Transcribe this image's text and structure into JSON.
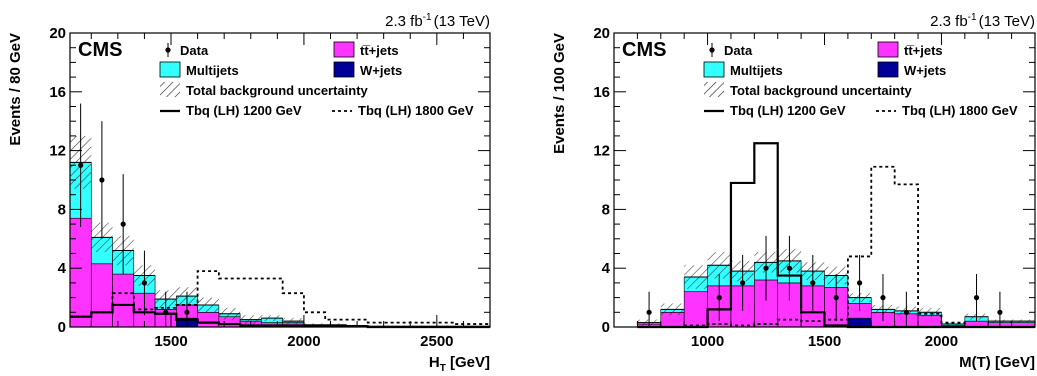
{
  "chart_data": [
    {
      "type": "bar",
      "lumi": "2.3 fb",
      "lumi_exp": "-1",
      "energy": "(13 TeV)",
      "experiment": "CMS",
      "ylabel": "Events / 80 GeV",
      "xlabel": "H",
      "xlabel_sub": "T",
      "xlabel_unit": " [GeV]",
      "xlim": [
        1120,
        2700
      ],
      "ylim": [
        0,
        20
      ],
      "x_ticks": [
        "1500",
        "2000",
        "2500"
      ],
      "y_ticks": [
        "0",
        "4",
        "8",
        "12",
        "16",
        "20"
      ],
      "legend": {
        "data": "Data",
        "ttbar": "tt̅+jets",
        "multijets": "Multijets",
        "wjets": "W+jets",
        "uncertainty": "Total background uncertainty",
        "signal1": "Tbq (LH) 1200 GeV",
        "signal2": "Tbq (LH) 1800 GeV"
      },
      "colors": {
        "ttbar": "#ff33ff",
        "multijets": "#33ffff",
        "wjets": "#000099",
        "data": "#000000"
      },
      "bin_edges": [
        1120,
        1200,
        1280,
        1360,
        1440,
        1520,
        1600,
        1680,
        1760,
        1840,
        1920,
        2000,
        2080,
        2160,
        2240,
        2320,
        2400,
        2480,
        2560,
        2640,
        2700
      ],
      "series": [
        {
          "name": "W+jets",
          "values": [
            0,
            0,
            0,
            0,
            0,
            0.6,
            0,
            0,
            0,
            0,
            0,
            0,
            0,
            0,
            0,
            0,
            0,
            0,
            0,
            0
          ]
        },
        {
          "name": "tt̅+jets",
          "values": [
            7.4,
            4.3,
            3.6,
            2.3,
            1.2,
            0.9,
            1.0,
            0.7,
            0.4,
            0.3,
            0.3,
            0.1,
            0.1,
            0.1,
            0.05,
            0.05,
            0.05,
            0.05,
            0.05,
            0.05
          ]
        },
        {
          "name": "Multijets",
          "values": [
            3.8,
            1.8,
            1.6,
            1.2,
            0.7,
            0.6,
            0.5,
            0.2,
            0.1,
            0.3,
            0.1,
            0.05,
            0.05,
            0,
            0,
            0,
            0,
            0,
            0,
            0
          ]
        }
      ],
      "uncertainty": [
        1.8,
        1.0,
        1.0,
        0.7,
        0.6,
        0.6,
        0.5,
        0.4,
        0.3,
        0.2,
        0.2,
        0.1,
        0.1,
        0.05,
        0.05,
        0.05,
        0.05,
        0.05,
        0.05,
        0.05
      ],
      "signal1": [
        0.7,
        1.0,
        1.5,
        1.0,
        0.9,
        0.5,
        0.3,
        0.2,
        0.1,
        0.1,
        0.1,
        0.05,
        0.05,
        0.05,
        0,
        0,
        0,
        0,
        0,
        0
      ],
      "signal2": [
        0.7,
        1.0,
        2.3,
        1.2,
        1.3,
        1.5,
        3.8,
        3.3,
        3.3,
        3.3,
        2.3,
        1.0,
        0.5,
        0.5,
        0.3,
        0.3,
        0.3,
        0.3,
        0.2,
        0.2
      ],
      "data_points": [
        {
          "x": 1160,
          "y": 11,
          "err": 4.2
        },
        {
          "x": 1240,
          "y": 10,
          "err": 4.0
        },
        {
          "x": 1320,
          "y": 7,
          "err": 3.4
        },
        {
          "x": 1400,
          "y": 3,
          "err": 2.2
        },
        {
          "x": 1480,
          "y": 1,
          "err": 1.4
        },
        {
          "x": 1560,
          "y": 1,
          "err": 1.4
        }
      ]
    },
    {
      "type": "bar",
      "lumi": "2.3 fb",
      "lumi_exp": "-1",
      "energy": "(13 TeV)",
      "experiment": "CMS",
      "ylabel": "Events / 100 GeV",
      "xlabel": "M(T)",
      "xlabel_sub": "",
      "xlabel_unit": " [GeV]",
      "xlim": [
        600,
        2400
      ],
      "ylim": [
        0,
        20
      ],
      "x_ticks": [
        "1000",
        "1500",
        "2000"
      ],
      "y_ticks": [
        "0",
        "4",
        "8",
        "12",
        "16",
        "20"
      ],
      "legend": {
        "data": "Data",
        "ttbar": "tt̅+jets",
        "multijets": "Multijets",
        "wjets": "W+jets",
        "uncertainty": "Total background uncertainty",
        "signal1": "Tbq (LH) 1200 GeV",
        "signal2": "Tbq (LH) 1800 GeV"
      },
      "colors": {
        "ttbar": "#ff33ff",
        "multijets": "#33ffff",
        "wjets": "#000099",
        "data": "#000000"
      },
      "bin_edges": [
        700,
        800,
        900,
        1000,
        1100,
        1200,
        1300,
        1400,
        1500,
        1600,
        1700,
        1800,
        1900,
        2000,
        2100,
        2200,
        2300,
        2400
      ],
      "series": [
        {
          "name": "W+jets",
          "values": [
            0,
            0,
            0,
            0,
            0,
            0,
            0,
            0,
            0,
            0.6,
            0,
            0,
            0,
            0,
            0,
            0,
            0
          ]
        },
        {
          "name": "tt̅+jets",
          "values": [
            0.2,
            1.0,
            2.4,
            2.8,
            2.8,
            3.2,
            3.0,
            2.8,
            2.7,
            1.0,
            1.0,
            0.9,
            0.8,
            0.1,
            0.4,
            0.3,
            0.3
          ]
        },
        {
          "name": "Multijets",
          "values": [
            0.1,
            0.2,
            1.0,
            1.4,
            1.0,
            1.2,
            1.5,
            1.0,
            0.8,
            0.4,
            0.2,
            0.2,
            0.2,
            0.1,
            0.3,
            0.1,
            0.1
          ]
        }
      ],
      "uncertainty": [
        0.2,
        0.4,
        0.8,
        0.9,
        0.7,
        0.7,
        0.8,
        0.6,
        0.6,
        0.3,
        0.3,
        0.3,
        0.3,
        0.1,
        0.2,
        0.1,
        0.1
      ],
      "signal1": [
        0,
        0,
        0,
        1.2,
        9.8,
        12.5,
        3.5,
        1.0,
        0.1,
        0,
        0,
        0,
        0,
        0,
        0,
        0,
        0
      ],
      "signal2": [
        0,
        0,
        0.1,
        0.2,
        0.1,
        0.2,
        0.5,
        0.4,
        0.5,
        4.8,
        10.9,
        9.7,
        0.9,
        0.3,
        0,
        0,
        0
      ],
      "data_points": [
        {
          "x": 750,
          "y": 1,
          "err": 1.4
        },
        {
          "x": 1050,
          "y": 2,
          "err": 1.6
        },
        {
          "x": 1150,
          "y": 3,
          "err": 1.9
        },
        {
          "x": 1250,
          "y": 4,
          "err": 2.2
        },
        {
          "x": 1350,
          "y": 4,
          "err": 2.2
        },
        {
          "x": 1450,
          "y": 3,
          "err": 1.9
        },
        {
          "x": 1550,
          "y": 2,
          "err": 1.6
        },
        {
          "x": 1650,
          "y": 3,
          "err": 1.9
        },
        {
          "x": 1750,
          "y": 2,
          "err": 1.6
        },
        {
          "x": 1850,
          "y": 1,
          "err": 1.4
        },
        {
          "x": 2150,
          "y": 2,
          "err": 1.6
        },
        {
          "x": 2250,
          "y": 1,
          "err": 1.4
        }
      ]
    }
  ]
}
